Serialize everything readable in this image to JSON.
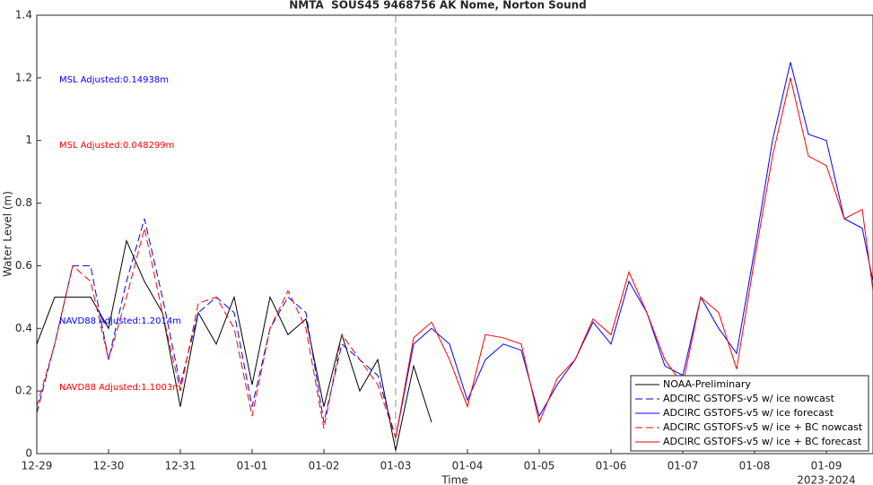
{
  "chart_data": {
    "type": "line",
    "title": "NMTA  SOUS45 9468756 AK Nome, Norton Sound",
    "x_label": "Time",
    "y_label": "Water Level (m)",
    "x_sublabel": "2023-2024",
    "xlim": [
      0,
      11.65
    ],
    "ylim": [
      0,
      1.4
    ],
    "xticks": [
      {
        "value": 0,
        "label": "12-29"
      },
      {
        "value": 1,
        "label": "12-30"
      },
      {
        "value": 2,
        "label": "12-31"
      },
      {
        "value": 3,
        "label": "01-01"
      },
      {
        "value": 4,
        "label": "01-02"
      },
      {
        "value": 5,
        "label": "01-03"
      },
      {
        "value": 6,
        "label": "01-04"
      },
      {
        "value": 7,
        "label": "01-05"
      },
      {
        "value": 8,
        "label": "01-06"
      },
      {
        "value": 9,
        "label": "01-07"
      },
      {
        "value": 10,
        "label": "01-08"
      },
      {
        "value": 11,
        "label": "01-09"
      }
    ],
    "yticks": [
      0,
      0.2,
      0.4,
      0.6,
      0.8,
      1,
      1.2,
      1.4
    ],
    "vline_x": 5,
    "grid": false,
    "legend_position": "lower right",
    "annotations": [
      {
        "text": "MSL Adjusted:0.14938m",
        "color": "#0000ff"
      },
      {
        "text": "MSL Adjusted:0.048299m",
        "color": "#ff0000"
      },
      {
        "text": "NAVD88 Adjusted:1.2014m",
        "color": "#0000ff"
      },
      {
        "text": "NAVD88 Adjusted:1.1003m",
        "color": "#ff0000"
      }
    ],
    "x": [
      0,
      0.25,
      0.5,
      0.75,
      1,
      1.25,
      1.5,
      1.75,
      2,
      2.25,
      2.5,
      2.75,
      3,
      3.25,
      3.5,
      3.75,
      4,
      4.25,
      4.5,
      4.75,
      5,
      5.25,
      5.5,
      5.75,
      6,
      6.25,
      6.5,
      6.75,
      7,
      7.25,
      7.5,
      7.75,
      8,
      8.25,
      8.5,
      8.75,
      9,
      9.25,
      9.5,
      9.75,
      10,
      10.25,
      10.5,
      10.75,
      11,
      11.25,
      11.5,
      11.65
    ],
    "series": [
      {
        "name": "NOAA-Preliminary",
        "color": "#000000",
        "dashed": false,
        "values": [
          0.35,
          0.5,
          0.5,
          0.5,
          0.4,
          0.68,
          0.55,
          0.45,
          0.15,
          0.45,
          0.35,
          0.5,
          0.22,
          0.5,
          0.38,
          0.43,
          0.15,
          0.38,
          0.2,
          0.3,
          0.01,
          0.28,
          0.1,
          null,
          null,
          null,
          null,
          null,
          null,
          null,
          null,
          null,
          null,
          null,
          null,
          null,
          null,
          null,
          null,
          null,
          null,
          null,
          null,
          null,
          null,
          null,
          null,
          null
        ]
      },
      {
        "name": "ADCIRC GSTOFS-v5 w/ ice nowcast",
        "color": "#0000ff",
        "dashed": true,
        "values": [
          0.13,
          0.35,
          0.6,
          0.6,
          0.3,
          0.55,
          0.75,
          0.5,
          0.22,
          0.45,
          0.5,
          0.45,
          0.15,
          0.4,
          0.5,
          0.45,
          0.1,
          0.35,
          0.3,
          0.25,
          0.05,
          null,
          null,
          null,
          null,
          null,
          null,
          null,
          null,
          null,
          null,
          null,
          null,
          null,
          null,
          null,
          null,
          null,
          null,
          null,
          null,
          null,
          null,
          null,
          null,
          null,
          null,
          null
        ]
      },
      {
        "name": "ADCIRC GSTOFS-v5 w/ ice forecast",
        "color": "#0000ff",
        "dashed": false,
        "values": [
          null,
          null,
          null,
          null,
          null,
          null,
          null,
          null,
          null,
          null,
          null,
          null,
          null,
          null,
          null,
          null,
          null,
          null,
          null,
          null,
          0.05,
          0.35,
          0.4,
          0.35,
          0.17,
          0.3,
          0.35,
          0.33,
          0.12,
          0.22,
          0.3,
          0.42,
          0.35,
          0.55,
          0.45,
          0.28,
          0.25,
          0.5,
          0.4,
          0.32,
          0.65,
          1.0,
          1.25,
          1.02,
          1.0,
          0.75,
          0.72,
          0.55
        ]
      },
      {
        "name": "ADCIRC GSTOFS-v5 w/ ice + BC nowcast",
        "color": "#ff0000",
        "dashed": true,
        "values": [
          0.15,
          0.35,
          0.6,
          0.55,
          0.3,
          0.5,
          0.72,
          0.45,
          0.2,
          0.48,
          0.5,
          0.4,
          0.12,
          0.4,
          0.52,
          0.4,
          0.08,
          0.38,
          0.3,
          0.22,
          0.05,
          null,
          null,
          null,
          null,
          null,
          null,
          null,
          null,
          null,
          null,
          null,
          null,
          null,
          null,
          null,
          null,
          null,
          null,
          null,
          null,
          null,
          null,
          null,
          null,
          null,
          null,
          null
        ]
      },
      {
        "name": "ADCIRC GSTOFS-v5 w/ ice + BC forecast",
        "color": "#ff0000",
        "dashed": false,
        "values": [
          null,
          null,
          null,
          null,
          null,
          null,
          null,
          null,
          null,
          null,
          null,
          null,
          null,
          null,
          null,
          null,
          null,
          null,
          null,
          null,
          0.05,
          0.37,
          0.42,
          0.3,
          0.15,
          0.38,
          0.37,
          0.35,
          0.1,
          0.24,
          0.3,
          0.43,
          0.38,
          0.58,
          0.45,
          0.3,
          0.22,
          0.5,
          0.45,
          0.27,
          0.62,
          0.95,
          1.2,
          0.95,
          0.92,
          0.75,
          0.78,
          0.52
        ]
      }
    ]
  }
}
